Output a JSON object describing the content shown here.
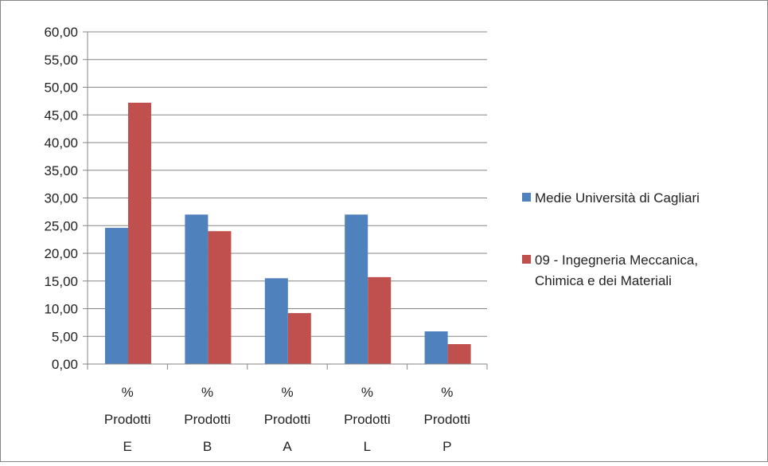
{
  "chart_data": {
    "type": "bar",
    "categories": [
      [
        "%",
        "Prodotti",
        "E"
      ],
      [
        "%",
        "Prodotti",
        "B"
      ],
      [
        "%",
        "Prodotti",
        "A"
      ],
      [
        "%",
        "Prodotti",
        "L"
      ],
      [
        "%",
        "Prodotti",
        "P"
      ]
    ],
    "series": [
      {
        "name": "Medie Università di Cagliari",
        "color": "#4f81bd",
        "values": [
          24.6,
          27.0,
          15.5,
          27.0,
          5.9
        ]
      },
      {
        "name_lines": [
          "09 - Ingegneria Meccanica,",
          "Chimica e dei Materiali"
        ],
        "color": "#c0504d",
        "values": [
          47.2,
          24.0,
          9.2,
          15.7,
          3.6
        ]
      }
    ],
    "ylim": [
      0,
      60
    ],
    "ytick_step": 5,
    "ytick_labels": [
      "0,00",
      "5,00",
      "10,00",
      "15,00",
      "20,00",
      "25,00",
      "30,00",
      "35,00",
      "40,00",
      "45,00",
      "50,00",
      "55,00",
      "60,00"
    ],
    "grid": true,
    "legend_position": "right"
  }
}
